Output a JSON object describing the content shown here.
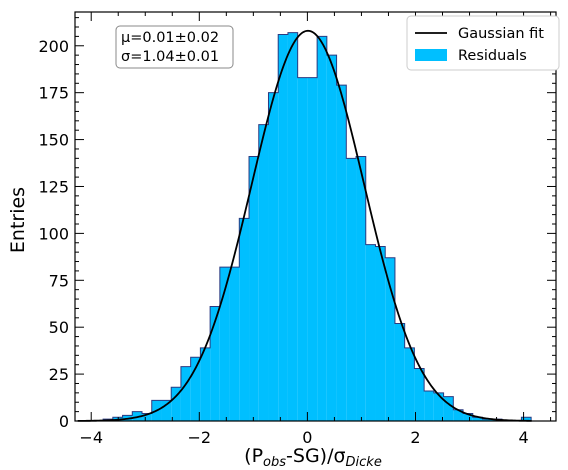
{
  "chart_data": {
    "type": "bar",
    "xlabel_main": "(P",
    "xlabel_sub1": "obs",
    "xlabel_mid": "-SG)/σ",
    "xlabel_sub2": "Dicke",
    "ylabel": "Entries",
    "xlim": [
      -4.3,
      4.6
    ],
    "ylim": [
      0,
      218
    ],
    "x_ticks": [
      -4,
      -2,
      0,
      2,
      4
    ],
    "x_tick_labels": [
      "−4",
      "−2",
      "0",
      "2",
      "4"
    ],
    "y_ticks": [
      0,
      25,
      50,
      75,
      100,
      125,
      150,
      175,
      200
    ],
    "y_tick_labels": [
      "0",
      "25",
      "50",
      "75",
      "100",
      "125",
      "150",
      "175",
      "200"
    ],
    "bin_width": 0.18,
    "histogram": {
      "name": "Residuals",
      "color": "#00bfff",
      "edge_color": "#2b3a80",
      "bin_start": [
        -3.78,
        -3.6,
        -3.42,
        -3.24,
        -3.06,
        -2.88,
        -2.7,
        -2.52,
        -2.34,
        -2.16,
        -1.98,
        -1.8,
        -1.62,
        -1.44,
        -1.26,
        -1.08,
        -0.9,
        -0.72,
        -0.54,
        -0.36,
        -0.18,
        0.0,
        0.18,
        0.36,
        0.54,
        0.72,
        0.9,
        1.08,
        1.26,
        1.44,
        1.62,
        1.8,
        1.98,
        2.16,
        2.34,
        2.52,
        2.7,
        2.88,
        3.06,
        3.24,
        3.42,
        3.6,
        3.78,
        3.96
      ],
      "counts": [
        1,
        2,
        3,
        5,
        4,
        11,
        11,
        18,
        29,
        34,
        39,
        61,
        82,
        82,
        108,
        141,
        158,
        175,
        206,
        207,
        183,
        183,
        205,
        195,
        179,
        140,
        141,
        94,
        93,
        87,
        52,
        39,
        28,
        16,
        15,
        13,
        6,
        4,
        2,
        1,
        1,
        0,
        0,
        2
      ]
    },
    "fit": {
      "name": "Gaussian fit",
      "color": "#000000",
      "mu": 0.01,
      "sigma": 1.04,
      "peak": 208
    },
    "stats_lines": [
      "μ=0.01±0.02",
      "σ=1.04±0.01"
    ],
    "legend": {
      "position": "top-right",
      "entries": [
        "Gaussian fit",
        "Residuals"
      ]
    }
  }
}
